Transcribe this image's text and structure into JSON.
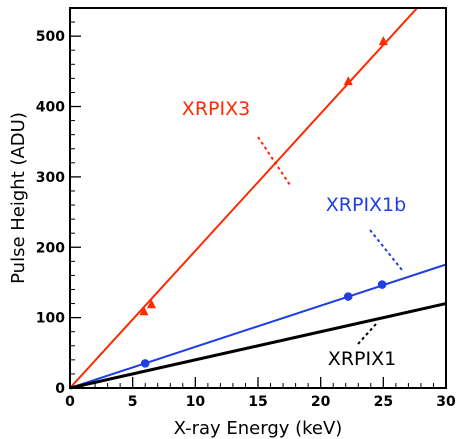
{
  "chart_data": {
    "type": "scatter",
    "title": "",
    "xlabel": "X-ray Energy (keV)",
    "ylabel": "Pulse Height (ADU)",
    "xlim": [
      0,
      30
    ],
    "ylim": [
      0,
      540
    ],
    "xticks": [
      0,
      5,
      10,
      15,
      20,
      25,
      30
    ],
    "yticks": [
      0,
      100,
      200,
      300,
      400,
      500
    ],
    "x_minor_step": 1,
    "y_minor_step": 20,
    "grid": false,
    "legend": "none",
    "series": [
      {
        "name": "XRPIX3",
        "color": "#ff2a00",
        "marker": "triangle",
        "fit_slope": 19.5,
        "fit_range": [
          0,
          27.7
        ],
        "points": [
          {
            "x": 5.9,
            "y": 109
          },
          {
            "x": 6.5,
            "y": 119
          },
          {
            "x": 22.2,
            "y": 436
          },
          {
            "x": 25.0,
            "y": 493
          }
        ]
      },
      {
        "name": "XRPIX1b",
        "color": "#1f3fe0",
        "marker": "circle",
        "fit_slope": 5.85,
        "fit_range": [
          0,
          30
        ],
        "points": [
          {
            "x": 6.0,
            "y": 35
          },
          {
            "x": 22.2,
            "y": 130
          },
          {
            "x": 24.9,
            "y": 147
          }
        ]
      },
      {
        "name": "XRPIX1",
        "color": "#000000",
        "marker": "none",
        "fit_slope": 4.0,
        "fit_range": [
          0,
          30
        ],
        "points": []
      }
    ]
  }
}
